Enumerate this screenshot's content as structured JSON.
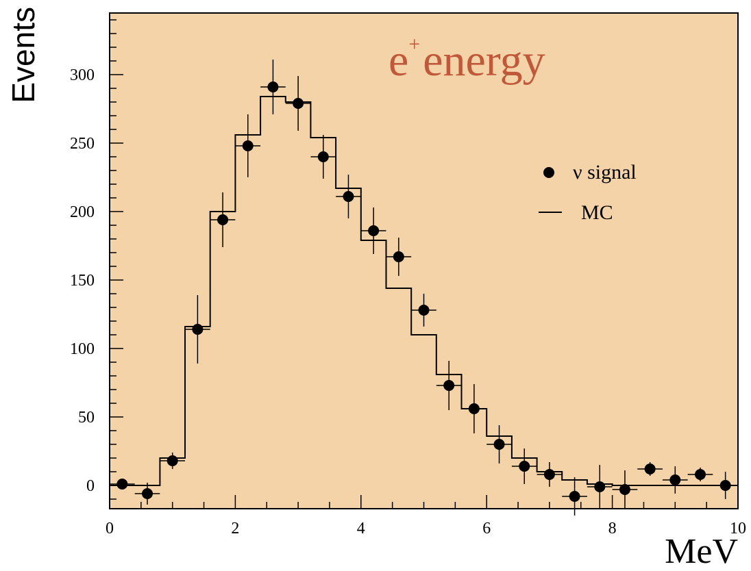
{
  "chart_data": {
    "type": "scatter",
    "title": "e+ energy",
    "title_parts": {
      "base": "e",
      "superscript": "+",
      "rest": "energy"
    },
    "title_color": "#c0583a",
    "xlabel": "MeV",
    "ylabel": "Events",
    "xlim": [
      0,
      10
    ],
    "ylim": [
      -17,
      345
    ],
    "x_ticks": [
      0,
      2,
      4,
      6,
      8,
      10
    ],
    "y_ticks": [
      0,
      50,
      100,
      150,
      200,
      250,
      300
    ],
    "x_tick_labels": [
      "0",
      "2",
      "4",
      "6",
      "8",
      "10"
    ],
    "y_tick_labels": [
      "0",
      "50",
      "100",
      "150",
      "200",
      "250",
      "300"
    ],
    "grid": false,
    "background_color": "#f5d3a8",
    "legend_position": "right",
    "legend": [
      {
        "marker": "dot",
        "label": "ν signal"
      },
      {
        "marker": "line",
        "label": "MC"
      }
    ],
    "series": [
      {
        "name": "ν signal",
        "kind": "points_with_errors",
        "x": [
          0.2,
          0.6,
          1.0,
          1.4,
          1.8,
          2.2,
          2.6,
          3.0,
          3.4,
          3.8,
          4.2,
          4.6,
          5.0,
          5.4,
          5.8,
          6.2,
          6.6,
          7.0,
          7.4,
          7.8,
          8.2,
          8.6,
          9.0,
          9.4,
          9.8
        ],
        "x_err": 0.2,
        "y": [
          1,
          -6,
          18,
          114,
          194,
          248,
          291,
          279,
          240,
          211,
          186,
          167,
          128,
          73,
          56,
          30,
          14,
          8,
          -8,
          -1,
          -3,
          12,
          4,
          8,
          0
        ],
        "y_err": [
          3,
          8,
          6,
          25,
          20,
          23,
          20,
          20,
          16,
          16,
          17,
          14,
          12,
          18,
          18,
          14,
          13,
          9,
          14,
          16,
          14,
          5,
          10,
          5,
          10
        ]
      },
      {
        "name": "MC",
        "kind": "step_histogram",
        "bin_edges": [
          0.0,
          0.4,
          0.8,
          1.2,
          1.6,
          2.0,
          2.4,
          2.8,
          3.2,
          3.6,
          4.0,
          4.4,
          4.8,
          5.2,
          5.6,
          6.0,
          6.4,
          6.8,
          7.2,
          7.6,
          8.0,
          8.4,
          8.8,
          9.2,
          9.6,
          10.0
        ],
        "values": [
          0,
          0,
          20,
          116,
          200,
          256,
          284,
          280,
          254,
          217,
          179,
          144,
          110,
          81,
          56,
          36,
          20,
          10,
          4,
          1,
          0,
          0,
          0,
          0,
          0
        ]
      }
    ]
  }
}
